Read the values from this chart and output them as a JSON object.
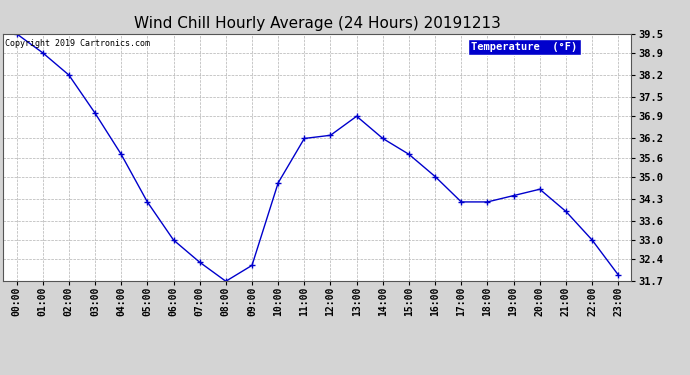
{
  "title": "Wind Chill Hourly Average (24 Hours) 20191213",
  "copyright_text": "Copyright 2019 Cartronics.com",
  "legend_label": "Temperature  (°F)",
  "hours": [
    "00:00",
    "01:00",
    "02:00",
    "03:00",
    "04:00",
    "05:00",
    "06:00",
    "07:00",
    "08:00",
    "09:00",
    "10:00",
    "11:00",
    "12:00",
    "13:00",
    "14:00",
    "15:00",
    "16:00",
    "17:00",
    "18:00",
    "19:00",
    "20:00",
    "21:00",
    "22:00",
    "23:00"
  ],
  "values": [
    39.5,
    38.9,
    38.2,
    37.0,
    35.7,
    34.2,
    33.0,
    32.3,
    31.7,
    32.2,
    34.8,
    36.2,
    36.3,
    36.9,
    36.2,
    35.7,
    35.0,
    34.2,
    34.2,
    34.4,
    34.6,
    33.9,
    33.0,
    31.9
  ],
  "ylim": [
    31.7,
    39.5
  ],
  "yticks": [
    31.7,
    32.4,
    33.0,
    33.6,
    34.3,
    35.0,
    35.6,
    36.2,
    36.9,
    37.5,
    38.2,
    38.9,
    39.5
  ],
  "line_color": "#0000cc",
  "marker_color": "#0000cc",
  "grid_color": "#aaaaaa",
  "background_color": "#d4d4d4",
  "plot_bg_color": "#ffffff",
  "title_fontsize": 11,
  "legend_bg_color": "#0000cc",
  "legend_text_color": "#ffffff",
  "copyright_color": "#000000"
}
